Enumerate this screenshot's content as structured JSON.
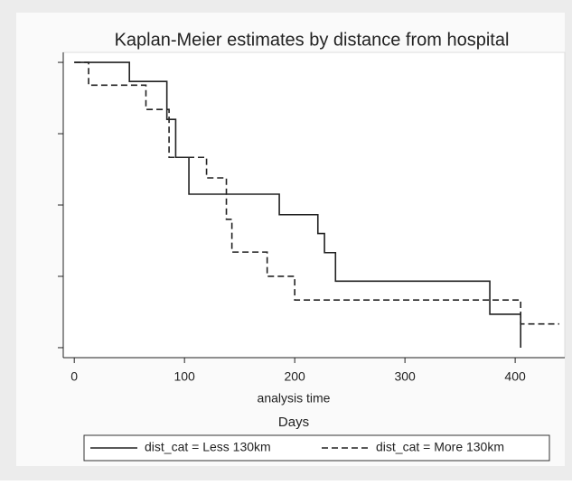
{
  "chart_data": {
    "type": "step",
    "title": "Kaplan-Meier estimates by distance from hospital",
    "x_label": "analysis time",
    "subtitle": "Days",
    "xlim": [
      -10,
      445
    ],
    "xticks": [
      0,
      100,
      200,
      300,
      400
    ],
    "ylim": [
      -0.035,
      1.035
    ],
    "yticks": [
      0,
      0.25,
      0.5,
      0.75,
      1
    ],
    "series": [
      {
        "name": "dist_cat = Less 130km",
        "color": "#222222",
        "dash": false,
        "x": [
          0,
          50,
          84,
          92,
          104,
          186,
          221,
          227,
          237,
          377,
          405
        ],
        "values": [
          1,
          0.933,
          0.8,
          0.667,
          0.538,
          0.466,
          0.4,
          0.333,
          0.233,
          0.117,
          0
        ]
      },
      {
        "name": "dist_cat = More 130km",
        "color": "#222222",
        "dash": true,
        "x": [
          0,
          13,
          65,
          86,
          120,
          138,
          143,
          175,
          200,
          405,
          440
        ],
        "values": [
          1,
          0.92,
          0.835,
          0.667,
          0.595,
          0.45,
          0.335,
          0.25,
          0.167,
          0.083,
          0.083
        ]
      }
    ]
  }
}
